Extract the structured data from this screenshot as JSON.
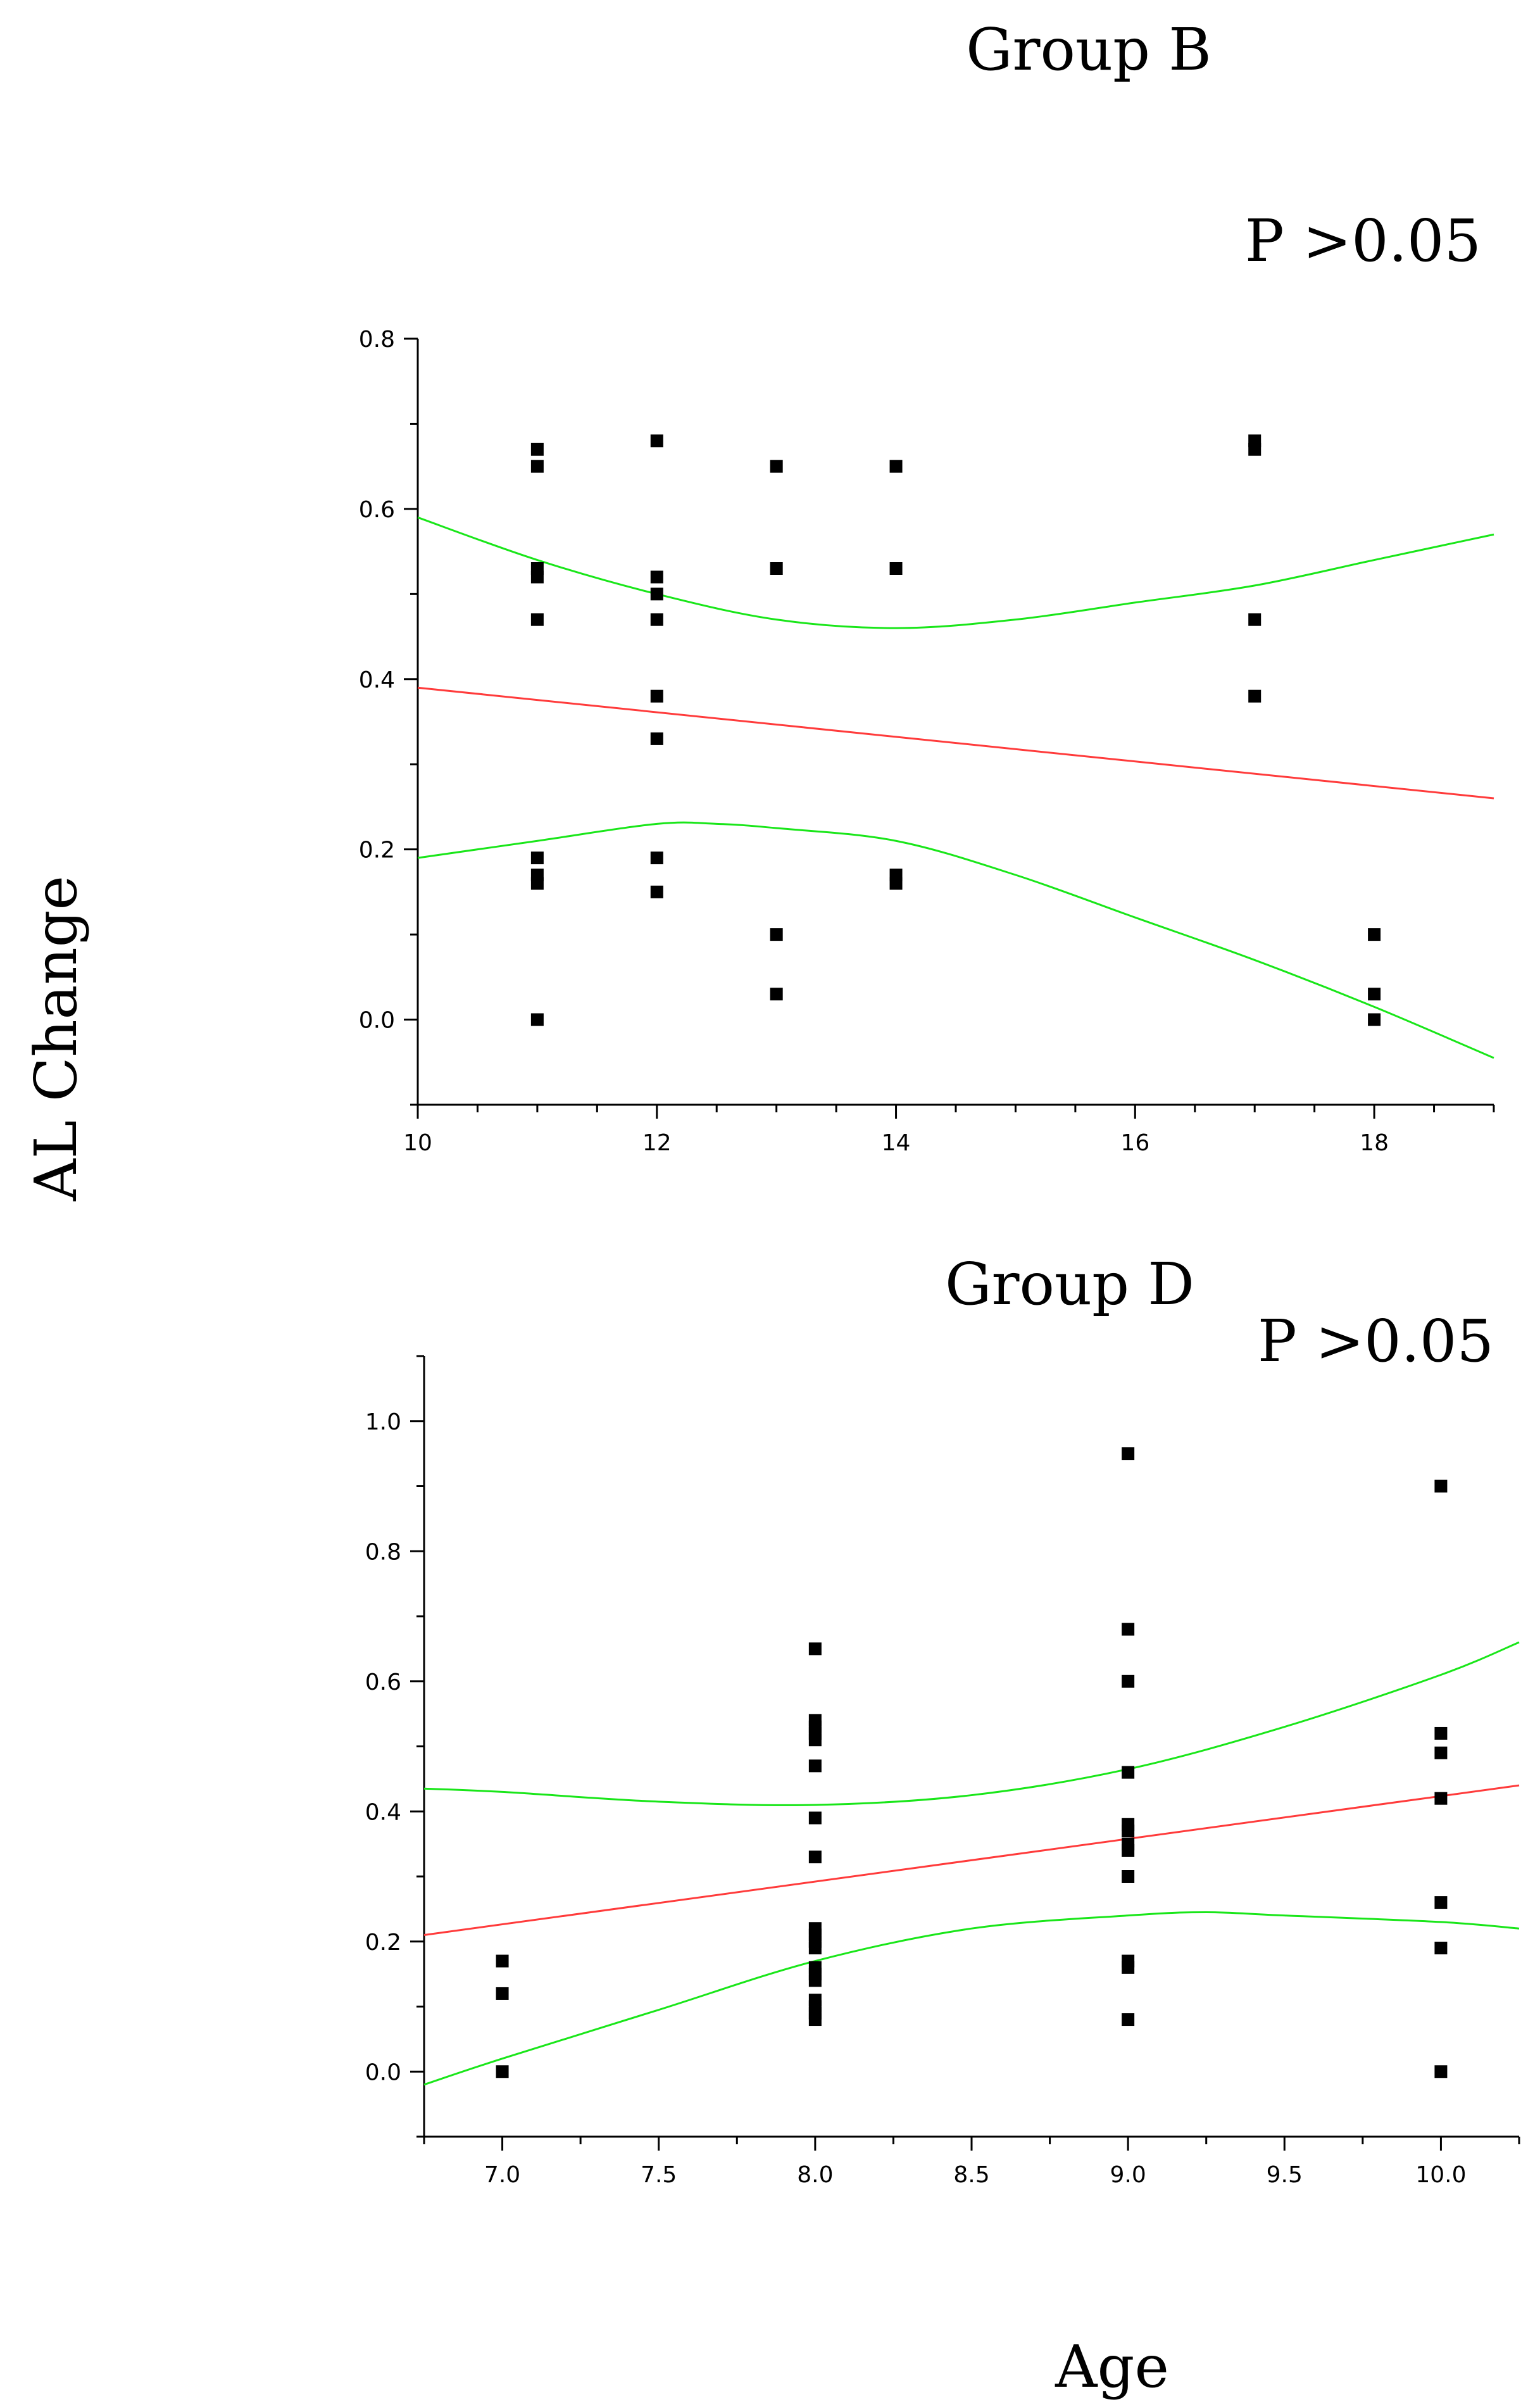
{
  "figure": {
    "ylabel": "AL Change",
    "xlabel": "Age"
  },
  "chart_data": [
    {
      "type": "scatter",
      "title": "Group B",
      "annotation": "P >0.05",
      "xlabel": "Age",
      "ylabel": "AL Change",
      "xlim": [
        10,
        19
      ],
      "ylim": [
        -0.1,
        0.8
      ],
      "xticks": [
        10,
        12,
        14,
        16,
        18
      ],
      "yticks": [
        0.0,
        0.2,
        0.4,
        0.6,
        0.8
      ],
      "xtick_labels": [
        "10",
        "12",
        "14",
        "16",
        "18"
      ],
      "ytick_labels": [
        "0.0",
        "0.2",
        "0.4",
        "0.6",
        "0.8"
      ],
      "points": [
        [
          11,
          0.67
        ],
        [
          11,
          0.65
        ],
        [
          11,
          0.53
        ],
        [
          11,
          0.52
        ],
        [
          11,
          0.47
        ],
        [
          11,
          0.19
        ],
        [
          11,
          0.17
        ],
        [
          11,
          0.16
        ],
        [
          11,
          0.0
        ],
        [
          12,
          0.68
        ],
        [
          12,
          0.52
        ],
        [
          12,
          0.5
        ],
        [
          12,
          0.47
        ],
        [
          12,
          0.38
        ],
        [
          12,
          0.33
        ],
        [
          12,
          0.19
        ],
        [
          12,
          0.15
        ],
        [
          13,
          0.65
        ],
        [
          13,
          0.53
        ],
        [
          13,
          0.1
        ],
        [
          13,
          0.03
        ],
        [
          14,
          0.65
        ],
        [
          14,
          0.53
        ],
        [
          14,
          0.17
        ],
        [
          14,
          0.16
        ],
        [
          17,
          0.68
        ],
        [
          17,
          0.67
        ],
        [
          17,
          0.47
        ],
        [
          17,
          0.38
        ],
        [
          18,
          0.1
        ],
        [
          18,
          0.03
        ],
        [
          18,
          0.0
        ]
      ],
      "fit_line": [
        [
          10,
          0.39
        ],
        [
          19,
          0.26
        ]
      ],
      "ci_upper": [
        [
          10,
          0.59
        ],
        [
          11,
          0.54
        ],
        [
          12,
          0.5
        ],
        [
          13,
          0.47
        ],
        [
          14,
          0.46
        ],
        [
          15,
          0.47
        ],
        [
          16,
          0.49
        ],
        [
          17,
          0.51
        ],
        [
          18,
          0.54
        ],
        [
          19,
          0.57
        ]
      ],
      "ci_lower": [
        [
          10,
          0.19
        ],
        [
          11,
          0.21
        ],
        [
          12,
          0.23
        ],
        [
          12.5,
          0.23
        ],
        [
          13,
          0.225
        ],
        [
          14,
          0.21
        ],
        [
          15,
          0.17
        ],
        [
          16,
          0.12
        ],
        [
          17,
          0.07
        ],
        [
          18,
          0.015
        ],
        [
          19,
          -0.045
        ]
      ]
    },
    {
      "type": "scatter",
      "title": "Group D",
      "annotation": "P >0.05",
      "xlabel": "Age",
      "ylabel": "AL Change",
      "xlim": [
        6.75,
        10.25
      ],
      "ylim": [
        -0.1,
        1.1
      ],
      "xticks": [
        7.0,
        7.5,
        8.0,
        8.5,
        9.0,
        9.5,
        10.0
      ],
      "yticks": [
        0.0,
        0.2,
        0.4,
        0.6,
        0.8,
        1.0
      ],
      "xtick_labels": [
        "7.0",
        "7.5",
        "8.0",
        "8.5",
        "9.0",
        "9.5",
        "10.0"
      ],
      "ytick_labels": [
        "0.0",
        "0.2",
        "0.4",
        "0.6",
        "0.8",
        "1.0"
      ],
      "points": [
        [
          7,
          0.17
        ],
        [
          7,
          0.12
        ],
        [
          7,
          0.0
        ],
        [
          8,
          0.65
        ],
        [
          8,
          0.54
        ],
        [
          8,
          0.53
        ],
        [
          8,
          0.52
        ],
        [
          8,
          0.51
        ],
        [
          8,
          0.47
        ],
        [
          8,
          0.39
        ],
        [
          8,
          0.33
        ],
        [
          8,
          0.22
        ],
        [
          8,
          0.21
        ],
        [
          8,
          0.2
        ],
        [
          8,
          0.19
        ],
        [
          8,
          0.16
        ],
        [
          8,
          0.15
        ],
        [
          8,
          0.14
        ],
        [
          8,
          0.11
        ],
        [
          8,
          0.1
        ],
        [
          8,
          0.09
        ],
        [
          8,
          0.08
        ],
        [
          9,
          0.95
        ],
        [
          9,
          0.68
        ],
        [
          9,
          0.6
        ],
        [
          9,
          0.46
        ],
        [
          9,
          0.38
        ],
        [
          9,
          0.37
        ],
        [
          9,
          0.35
        ],
        [
          9,
          0.34
        ],
        [
          9,
          0.3
        ],
        [
          9,
          0.17
        ],
        [
          9,
          0.16
        ],
        [
          9,
          0.08
        ],
        [
          10,
          0.9
        ],
        [
          10,
          0.52
        ],
        [
          10,
          0.49
        ],
        [
          10,
          0.42
        ],
        [
          10,
          0.26
        ],
        [
          10,
          0.19
        ],
        [
          10,
          0.0
        ]
      ],
      "fit_line": [
        [
          6.75,
          0.21
        ],
        [
          10.25,
          0.44
        ]
      ],
      "ci_upper": [
        [
          6.75,
          0.435
        ],
        [
          7.0,
          0.43
        ],
        [
          7.5,
          0.415
        ],
        [
          8.0,
          0.41
        ],
        [
          8.5,
          0.425
        ],
        [
          9.0,
          0.465
        ],
        [
          9.5,
          0.53
        ],
        [
          10.0,
          0.61
        ],
        [
          10.25,
          0.66
        ]
      ],
      "ci_lower": [
        [
          6.75,
          -0.02
        ],
        [
          7.0,
          0.02
        ],
        [
          7.5,
          0.095
        ],
        [
          8.0,
          0.17
        ],
        [
          8.5,
          0.22
        ],
        [
          9.0,
          0.24
        ],
        [
          9.25,
          0.245
        ],
        [
          9.5,
          0.24
        ],
        [
          10.0,
          0.23
        ],
        [
          10.25,
          0.22
        ]
      ]
    }
  ],
  "colors": {
    "fit": "#ff3b3b",
    "ci": "#19e619",
    "points": "#000000"
  }
}
